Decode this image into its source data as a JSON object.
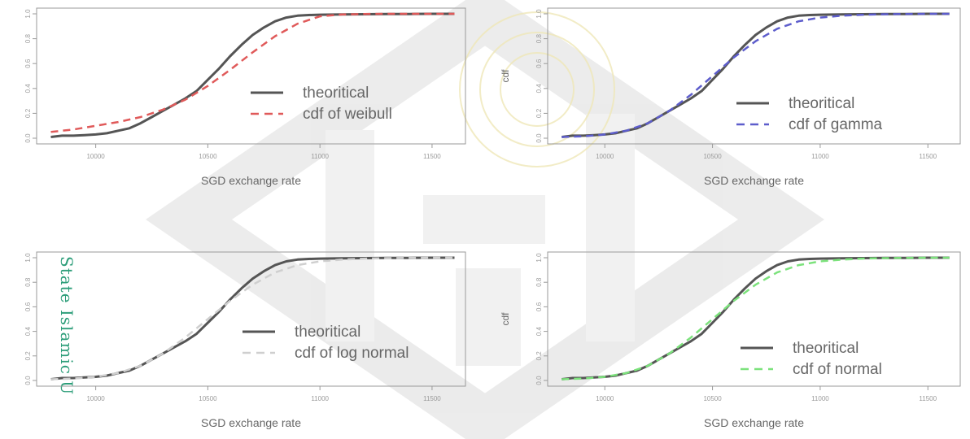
{
  "colors": {
    "theoretical": "#555555",
    "weibull": "#e05a5a",
    "gamma": "#5d5dcc",
    "lognormal": "#cfcfcf",
    "normal": "#7ce27c",
    "watermark_green": "#2e9e7a"
  },
  "watermark": {
    "side_text": "State Islamic U"
  },
  "chart_data": [
    {
      "type": "line",
      "title": "",
      "xlabel": "SGD exchange rate",
      "ylabel": "",
      "xlim": [
        9780,
        11620
      ],
      "ylim": [
        0,
        1
      ],
      "x_ticks": [
        10000,
        10500,
        11000,
        11500
      ],
      "x_tick_labels": [
        "10000",
        "10500",
        "11000",
        "11500"
      ],
      "y_ticks": [
        0,
        0.2,
        0.4,
        0.6,
        0.8,
        1.0
      ],
      "y_tick_labels": [
        "0.0",
        "0.2",
        "0.4",
        "0.6",
        "0.8",
        "1.0"
      ],
      "legend_position": "center-right",
      "series": [
        {
          "name": "theoritical",
          "style": "solid",
          "color_key": "theoretical",
          "x": [
            9800,
            9850,
            9900,
            9950,
            10000,
            10050,
            10100,
            10150,
            10200,
            10250,
            10300,
            10350,
            10400,
            10450,
            10500,
            10550,
            10600,
            10650,
            10700,
            10750,
            10800,
            10850,
            10900,
            10950,
            11000,
            11100,
            11200,
            11300,
            11400,
            11500,
            11600
          ],
          "y": [
            0.01,
            0.02,
            0.02,
            0.025,
            0.03,
            0.04,
            0.06,
            0.08,
            0.12,
            0.17,
            0.22,
            0.27,
            0.32,
            0.38,
            0.47,
            0.56,
            0.66,
            0.75,
            0.83,
            0.89,
            0.94,
            0.97,
            0.985,
            0.99,
            0.993,
            0.995,
            0.997,
            0.998,
            0.999,
            1.0,
            1.0
          ]
        },
        {
          "name": "cdf of weibull",
          "style": "dashed",
          "color_key": "weibull",
          "x": [
            9800,
            9900,
            10000,
            10100,
            10200,
            10300,
            10400,
            10500,
            10600,
            10700,
            10800,
            10900,
            11000,
            11100,
            11200,
            11300,
            11400,
            11500,
            11600
          ],
          "y": [
            0.05,
            0.07,
            0.1,
            0.13,
            0.17,
            0.23,
            0.31,
            0.42,
            0.55,
            0.69,
            0.82,
            0.92,
            0.98,
            0.995,
            0.999,
            1.0,
            1.0,
            1.0,
            1.0
          ]
        }
      ]
    },
    {
      "type": "line",
      "title": "",
      "xlabel": "SGD exchange rate",
      "ylabel": "cdf",
      "xlim": [
        9780,
        11620
      ],
      "ylim": [
        0,
        1
      ],
      "x_ticks": [
        10000,
        10500,
        11000,
        11500
      ],
      "x_tick_labels": [
        "10000",
        "10500",
        "11000",
        "11500"
      ],
      "y_ticks": [
        0,
        0.2,
        0.4,
        0.6,
        0.8,
        1.0
      ],
      "y_tick_labels": [
        "0.0",
        "0.2",
        "0.4",
        "0.6",
        "0.8",
        "1.0"
      ],
      "legend_position": "center-right",
      "series": [
        {
          "name": "theoritical",
          "style": "solid",
          "color_key": "theoretical",
          "x": [
            9800,
            9850,
            9900,
            9950,
            10000,
            10050,
            10100,
            10150,
            10200,
            10250,
            10300,
            10350,
            10400,
            10450,
            10500,
            10550,
            10600,
            10650,
            10700,
            10750,
            10800,
            10850,
            10900,
            10950,
            11000,
            11100,
            11200,
            11300,
            11400,
            11500,
            11600
          ],
          "y": [
            0.01,
            0.02,
            0.02,
            0.025,
            0.03,
            0.04,
            0.06,
            0.08,
            0.12,
            0.17,
            0.22,
            0.27,
            0.32,
            0.38,
            0.47,
            0.56,
            0.66,
            0.75,
            0.83,
            0.89,
            0.94,
            0.97,
            0.985,
            0.99,
            0.993,
            0.995,
            0.997,
            0.998,
            0.999,
            1.0,
            1.0
          ]
        },
        {
          "name": "cdf of gamma",
          "style": "dashed",
          "color_key": "gamma",
          "x": [
            9800,
            9900,
            10000,
            10100,
            10200,
            10300,
            10400,
            10500,
            10600,
            10700,
            10800,
            10900,
            11000,
            11100,
            11200,
            11300,
            11400,
            11500,
            11600
          ],
          "y": [
            0.01,
            0.015,
            0.03,
            0.06,
            0.12,
            0.22,
            0.35,
            0.5,
            0.65,
            0.78,
            0.88,
            0.94,
            0.97,
            0.985,
            0.993,
            0.997,
            0.999,
            1.0,
            1.0
          ]
        }
      ]
    },
    {
      "type": "line",
      "title": "",
      "xlabel": "SGD exchange rate",
      "ylabel": "",
      "xlim": [
        9780,
        11620
      ],
      "ylim": [
        0,
        1
      ],
      "x_ticks": [
        10000,
        10500,
        11000,
        11500
      ],
      "x_tick_labels": [
        "10000",
        "10500",
        "11000",
        "11500"
      ],
      "y_ticks": [
        0,
        0.2,
        0.4,
        0.6,
        0.8,
        1.0
      ],
      "y_tick_labels": [
        "0.0",
        "0.2",
        "0.4",
        "0.6",
        "0.8",
        "1.0"
      ],
      "legend_position": "center-right",
      "series": [
        {
          "name": "theoritical",
          "style": "solid",
          "color_key": "theoretical",
          "x": [
            9800,
            9850,
            9900,
            9950,
            10000,
            10050,
            10100,
            10150,
            10200,
            10250,
            10300,
            10350,
            10400,
            10450,
            10500,
            10550,
            10600,
            10650,
            10700,
            10750,
            10800,
            10850,
            10900,
            10950,
            11000,
            11100,
            11200,
            11300,
            11400,
            11500,
            11600
          ],
          "y": [
            0.01,
            0.02,
            0.02,
            0.025,
            0.03,
            0.04,
            0.06,
            0.08,
            0.12,
            0.17,
            0.22,
            0.27,
            0.32,
            0.38,
            0.47,
            0.56,
            0.66,
            0.75,
            0.83,
            0.89,
            0.94,
            0.97,
            0.985,
            0.99,
            0.993,
            0.995,
            0.997,
            0.998,
            0.999,
            1.0,
            1.0
          ]
        },
        {
          "name": "cdf of log normal",
          "style": "dashed",
          "color_key": "lognormal",
          "x": [
            9800,
            9900,
            10000,
            10100,
            10200,
            10300,
            10400,
            10500,
            10600,
            10700,
            10800,
            10900,
            11000,
            11100,
            11200,
            11300,
            11400,
            11500,
            11600
          ],
          "y": [
            0.01,
            0.015,
            0.03,
            0.06,
            0.12,
            0.22,
            0.35,
            0.5,
            0.65,
            0.78,
            0.88,
            0.94,
            0.97,
            0.985,
            0.993,
            0.997,
            0.999,
            1.0,
            1.0
          ]
        }
      ]
    },
    {
      "type": "line",
      "title": "",
      "xlabel": "SGD exchange rate",
      "ylabel": "cdf",
      "xlim": [
        9780,
        11620
      ],
      "ylim": [
        0,
        1
      ],
      "x_ticks": [
        10000,
        10500,
        11000,
        11500
      ],
      "x_tick_labels": [
        "10000",
        "10500",
        "11000",
        "11500"
      ],
      "y_ticks": [
        0,
        0.2,
        0.4,
        0.6,
        0.8,
        1.0
      ],
      "y_tick_labels": [
        "0.0",
        "0.2",
        "0.4",
        "0.6",
        "0.8",
        "1.0"
      ],
      "legend_position": "bottom-right",
      "series": [
        {
          "name": "theoritical",
          "style": "solid",
          "color_key": "theoretical",
          "x": [
            9800,
            9850,
            9900,
            9950,
            10000,
            10050,
            10100,
            10150,
            10200,
            10250,
            10300,
            10350,
            10400,
            10450,
            10500,
            10550,
            10600,
            10650,
            10700,
            10750,
            10800,
            10850,
            10900,
            10950,
            11000,
            11100,
            11200,
            11300,
            11400,
            11500,
            11600
          ],
          "y": [
            0.01,
            0.02,
            0.02,
            0.025,
            0.03,
            0.04,
            0.06,
            0.08,
            0.12,
            0.17,
            0.22,
            0.27,
            0.32,
            0.38,
            0.47,
            0.56,
            0.66,
            0.75,
            0.83,
            0.89,
            0.94,
            0.97,
            0.985,
            0.99,
            0.993,
            0.995,
            0.997,
            0.998,
            0.999,
            1.0,
            1.0
          ]
        },
        {
          "name": "cdf of normal",
          "style": "dashed",
          "color_key": "normal",
          "x": [
            9800,
            9900,
            10000,
            10100,
            10200,
            10300,
            10400,
            10500,
            10600,
            10700,
            10800,
            10900,
            11000,
            11100,
            11200,
            11300,
            11400,
            11500,
            11600
          ],
          "y": [
            0.01,
            0.015,
            0.03,
            0.06,
            0.12,
            0.22,
            0.35,
            0.5,
            0.65,
            0.78,
            0.88,
            0.94,
            0.97,
            0.985,
            0.993,
            0.997,
            0.999,
            1.0,
            1.0
          ]
        }
      ]
    }
  ]
}
